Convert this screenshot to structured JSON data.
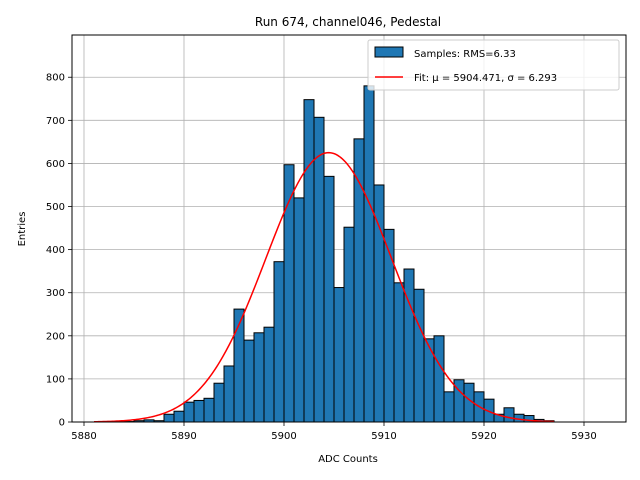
{
  "chart_data": {
    "type": "bar",
    "title": "Run 674, channel046, Pedestal",
    "xlabel": "ADC Counts",
    "ylabel": "Entries",
    "xlim": [
      5878.8,
      5934.2
    ],
    "ylim": [
      0,
      898
    ],
    "grid": true,
    "legend_position": "top-right",
    "xticks": [
      5880,
      5890,
      5900,
      5910,
      5920,
      5930
    ],
    "yticks": [
      0,
      100,
      200,
      300,
      400,
      500,
      600,
      700,
      800
    ],
    "bin_width": 1,
    "bins_start": [
      5881,
      5882,
      5883,
      5884,
      5885,
      5886,
      5887,
      5888,
      5889,
      5890,
      5891,
      5892,
      5893,
      5894,
      5895,
      5896,
      5897,
      5898,
      5899,
      5900,
      5901,
      5902,
      5903,
      5904,
      5905,
      5906,
      5907,
      5908,
      5909,
      5910,
      5911,
      5912,
      5913,
      5914,
      5915,
      5916,
      5917,
      5918,
      5919,
      5920,
      5921,
      5922,
      5923,
      5924,
      5925,
      5926,
      5927
    ],
    "values": [
      0,
      0,
      0,
      1,
      3,
      5,
      3,
      18,
      25,
      46,
      50,
      55,
      90,
      130,
      262,
      190,
      207,
      220,
      372,
      597,
      520,
      748,
      707,
      570,
      312,
      452,
      657,
      780,
      550,
      447,
      323,
      355,
      308,
      193,
      200,
      70,
      98,
      90,
      70,
      53,
      18,
      33,
      18,
      15,
      6,
      3,
      0
    ],
    "series": [
      {
        "name": "Samples: RMS=6.33",
        "type": "histogram",
        "color": "#1f77b4"
      },
      {
        "name": "Fit: μ = 5904.471, σ = 6.293",
        "type": "gaussian",
        "color": "#ff0000",
        "mu": 5904.471,
        "sigma": 6.293,
        "amplitude": 625,
        "x_range": [
          5881,
          5927
        ]
      }
    ]
  }
}
